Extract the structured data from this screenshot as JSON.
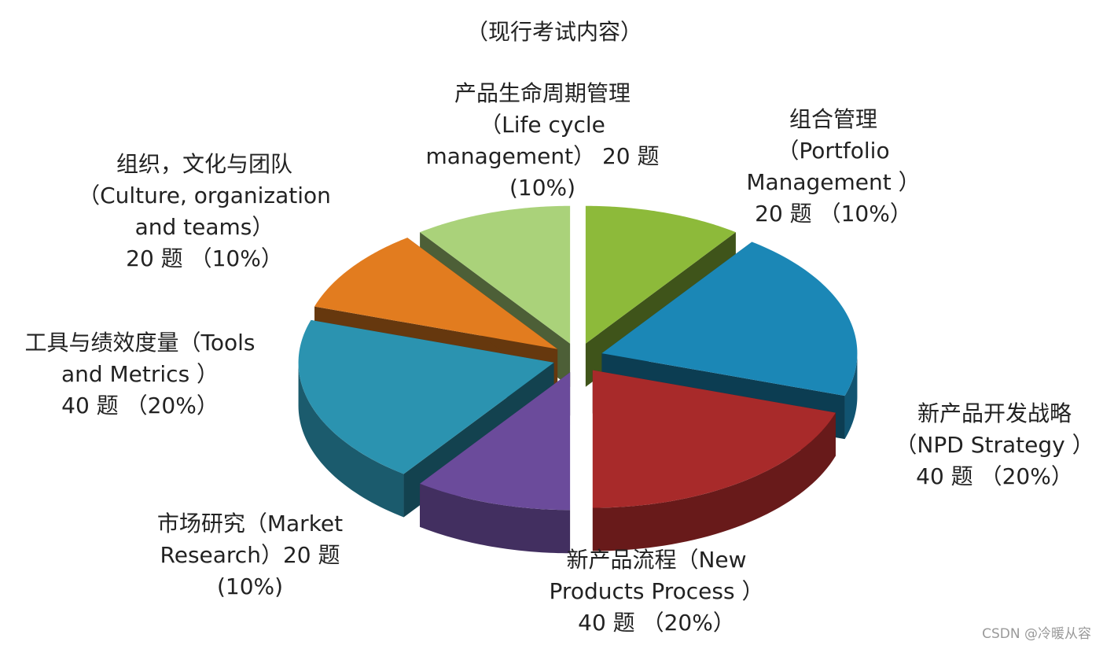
{
  "chart_data": {
    "type": "pie3d",
    "title": "（现行考试内容）",
    "categories": [
      [
        "组合管理",
        "（Portfolio",
        "Management ）",
        "20 题 （10%）"
      ],
      [
        "新产品开发战略",
        "（NPD Strategy ）",
        "40 题 （20%）"
      ],
      [
        "新产品流程（New",
        "Products Process ）",
        "40 题 （20%）"
      ],
      [
        "市场研究（Market",
        "Research）20 题",
        "(10%)"
      ],
      [
        "工具与绩效度量（Tools",
        "and Metrics ）",
        "40 题 （20%）"
      ],
      [
        "组织，文化与团队",
        "（Culture, organization",
        "and teams）",
        "20 题 （10%）"
      ],
      [
        "产品生命周期管理",
        "（Life cycle",
        "management） 20 题",
        "(10%)"
      ]
    ],
    "values": [
      10,
      20,
      20,
      10,
      20,
      10,
      10
    ],
    "colors": [
      "#8dba3a",
      "#1b87b6",
      "#a82a2a",
      "#6b4b9b",
      "#2b93b0",
      "#e27c1f",
      "#aad27a"
    ],
    "watermark": "CSDN @冷暖从容"
  }
}
